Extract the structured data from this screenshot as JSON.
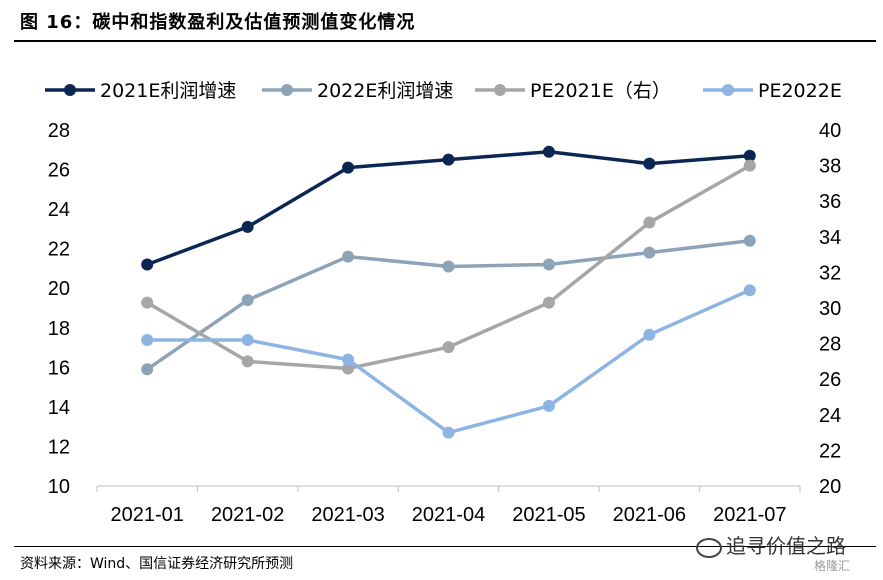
{
  "figure": {
    "title": "图 16：碳中和指数盈利及估值预测值变化情况",
    "source": "资料来源：Wind、国信证券经济研究所预测",
    "watermark": "追寻价值之路",
    "watermark_logo": "格隆汇"
  },
  "chart_data": {
    "type": "line",
    "categories": [
      "2021-01",
      "2021-02",
      "2021-03",
      "2021-04",
      "2021-05",
      "2021-06",
      "2021-07"
    ],
    "y_left": {
      "ylim": [
        10,
        28
      ],
      "ticks": [
        10,
        12,
        14,
        16,
        18,
        20,
        22,
        24,
        26,
        28
      ]
    },
    "y_right": {
      "ylim": [
        20,
        40
      ],
      "ticks": [
        20,
        22,
        24,
        26,
        28,
        30,
        32,
        34,
        36,
        38,
        40
      ]
    },
    "series": [
      {
        "name": "2021E利润增速",
        "axis": "left",
        "color": "#0b2653",
        "values": [
          21.2,
          23.1,
          26.1,
          26.5,
          26.9,
          26.3,
          26.7
        ]
      },
      {
        "name": "2022E利润增速",
        "axis": "left",
        "color": "#8da3b8",
        "values": [
          15.9,
          19.4,
          21.6,
          21.1,
          21.2,
          21.8,
          22.4
        ]
      },
      {
        "name": "PE2021E（右）",
        "axis": "right",
        "color": "#a6a6a6",
        "values": [
          30.3,
          27.0,
          26.6,
          27.8,
          30.3,
          34.8,
          38.0
        ]
      },
      {
        "name": "PE2022E",
        "axis": "right",
        "color": "#8db4e2",
        "values": [
          28.2,
          28.2,
          27.1,
          23.0,
          24.5,
          28.5,
          31.0
        ]
      }
    ],
    "grid": false,
    "legend": "top"
  }
}
